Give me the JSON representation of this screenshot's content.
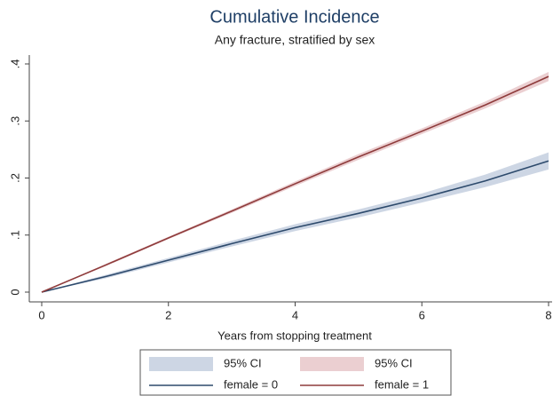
{
  "chart_data": {
    "type": "line",
    "title": "Cumulative Incidence",
    "subtitle": "Any fracture, stratified by sex",
    "x_label": "Years from stopping treatment",
    "x": [
      0,
      1,
      2,
      3,
      4,
      5,
      6,
      7,
      8
    ],
    "xlim": [
      0,
      8
    ],
    "xticks": [
      0,
      2,
      4,
      6,
      8
    ],
    "ylim": [
      0,
      0.4
    ],
    "yticks": [
      0,
      {
        "value": 0.1,
        "label": ".1"
      },
      {
        "value": 0.2,
        "label": ".2"
      },
      {
        "value": 0.3,
        "label": ".3"
      },
      {
        "value": 0.4,
        "label": ".4"
      }
    ],
    "grid": false,
    "series": [
      {
        "name": "female = 0",
        "color": "#2d4a6c",
        "values": [
          0,
          0.027,
          0.056,
          0.085,
          0.113,
          0.138,
          0.165,
          0.195,
          0.23
        ],
        "ci_name": "95% CI",
        "ci_color": "#cdd6e4",
        "lower": [
          0,
          0.024,
          0.052,
          0.08,
          0.107,
          0.131,
          0.157,
          0.184,
          0.215
        ],
        "upper": [
          0,
          0.03,
          0.06,
          0.09,
          0.119,
          0.145,
          0.173,
          0.206,
          0.245
        ]
      },
      {
        "name": "female = 1",
        "color": "#8e3b3b",
        "values": [
          0,
          0.047,
          0.095,
          0.142,
          0.19,
          0.237,
          0.282,
          0.328,
          0.378
        ],
        "ci_name": "95% CI",
        "ci_color": "#ebcfd1",
        "lower": [
          0,
          0.045,
          0.093,
          0.139,
          0.186,
          0.232,
          0.277,
          0.322,
          0.37
        ],
        "upper": [
          0,
          0.049,
          0.097,
          0.145,
          0.194,
          0.242,
          0.287,
          0.334,
          0.386
        ]
      }
    ]
  }
}
